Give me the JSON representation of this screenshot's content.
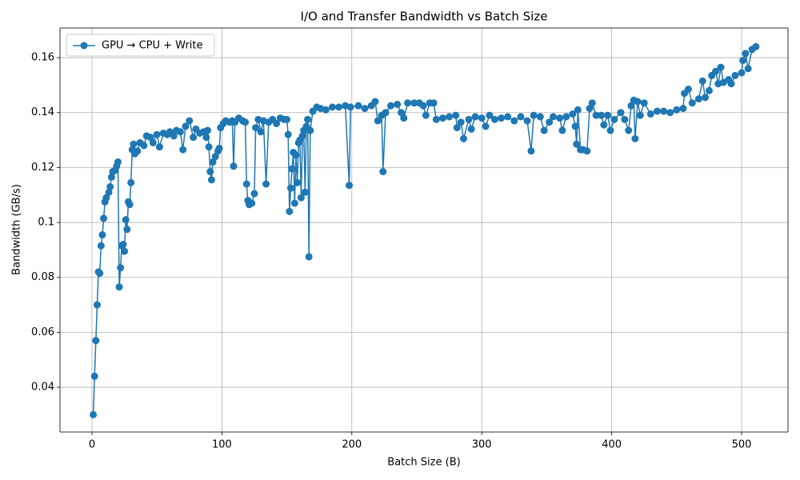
{
  "chart_data": {
    "type": "line",
    "title": "I/O and Transfer Bandwidth vs Batch Size",
    "xlabel": "Batch Size (B)",
    "ylabel": "Bandwidth (GB/s)",
    "x": [
      1,
      2,
      3,
      4,
      5,
      6,
      7,
      8,
      9,
      10,
      11,
      13,
      14,
      15,
      16,
      18,
      19,
      20,
      21,
      22,
      23,
      24,
      25,
      26,
      27,
      28,
      29,
      30,
      31,
      32,
      33,
      35,
      37,
      40,
      42,
      45,
      47,
      50,
      52,
      55,
      58,
      60,
      63,
      65,
      68,
      70,
      72,
      75,
      78,
      80,
      83,
      86,
      88,
      89,
      90,
      91,
      92,
      93,
      95,
      97,
      98,
      99,
      101,
      103,
      106,
      108,
      109,
      110,
      113,
      116,
      118,
      119,
      120,
      121,
      123,
      125,
      126,
      128,
      130,
      132,
      134,
      136,
      139,
      142,
      145,
      148,
      150,
      151,
      152,
      153,
      154,
      155,
      156,
      157,
      158,
      159,
      160,
      161,
      162,
      163,
      164,
      165,
      166,
      167,
      168,
      170,
      173,
      176,
      180,
      185,
      190,
      195,
      198,
      199,
      205,
      210,
      215,
      218,
      220,
      223,
      224,
      226,
      230,
      235,
      238,
      240,
      243,
      248,
      252,
      255,
      257,
      260,
      263,
      265,
      270,
      275,
      280,
      281,
      284,
      286,
      290,
      292,
      295,
      300,
      303,
      306,
      310,
      315,
      320,
      325,
      330,
      335,
      338,
      340,
      345,
      348,
      352,
      355,
      360,
      362,
      365,
      370,
      372,
      373,
      374,
      376,
      378,
      381,
      383,
      385,
      388,
      392,
      394,
      397,
      399,
      402,
      407,
      410,
      413,
      415,
      417,
      418,
      420,
      422,
      425,
      430,
      435,
      440,
      445,
      450,
      455,
      456,
      459,
      462,
      467,
      470,
      472,
      475,
      477,
      480,
      482,
      484,
      486,
      490,
      492,
      495,
      500,
      501,
      503,
      505,
      508,
      511
    ],
    "series": [
      {
        "name": "GPU → CPU + Write",
        "color": "#1f77b4",
        "values": [
          0.03,
          0.044,
          0.057,
          0.07,
          0.082,
          0.0815,
          0.0915,
          0.0955,
          0.1015,
          0.1075,
          0.109,
          0.111,
          0.113,
          0.1165,
          0.1185,
          0.119,
          0.1205,
          0.122,
          0.0765,
          0.0835,
          0.0915,
          0.092,
          0.0895,
          0.101,
          0.0975,
          0.1075,
          0.1065,
          0.1145,
          0.1265,
          0.1285,
          0.125,
          0.126,
          0.129,
          0.128,
          0.1315,
          0.131,
          0.129,
          0.132,
          0.1275,
          0.1325,
          0.132,
          0.133,
          0.1315,
          0.1335,
          0.133,
          0.1265,
          0.135,
          0.137,
          0.131,
          0.134,
          0.1325,
          0.133,
          0.131,
          0.1335,
          0.1275,
          0.1185,
          0.1155,
          0.122,
          0.124,
          0.126,
          0.127,
          0.1345,
          0.136,
          0.137,
          0.1365,
          0.137,
          0.1205,
          0.1365,
          0.138,
          0.137,
          0.1365,
          0.114,
          0.108,
          0.1065,
          0.107,
          0.1105,
          0.1345,
          0.1375,
          0.133,
          0.137,
          0.114,
          0.1365,
          0.1375,
          0.136,
          0.138,
          0.1375,
          0.1375,
          0.132,
          0.104,
          0.1125,
          0.1195,
          0.1255,
          0.107,
          0.1245,
          0.1145,
          0.129,
          0.13,
          0.109,
          0.1315,
          0.1335,
          0.111,
          0.135,
          0.1375,
          0.0875,
          0.1335,
          0.1405,
          0.142,
          0.1415,
          0.141,
          0.142,
          0.142,
          0.1425,
          0.1135,
          0.142,
          0.1425,
          0.1415,
          0.1425,
          0.144,
          0.137,
          0.139,
          0.1185,
          0.14,
          0.1425,
          0.143,
          0.14,
          0.138,
          0.1435,
          0.1435,
          0.1435,
          0.1425,
          0.139,
          0.1435,
          0.1435,
          0.1375,
          0.138,
          0.1385,
          0.139,
          0.1345,
          0.1365,
          0.1305,
          0.1375,
          0.134,
          0.1385,
          0.138,
          0.135,
          0.139,
          0.1375,
          0.138,
          0.1385,
          0.137,
          0.1385,
          0.137,
          0.126,
          0.139,
          0.1385,
          0.1335,
          0.1365,
          0.1385,
          0.138,
          0.1335,
          0.1385,
          0.1395,
          0.135,
          0.1285,
          0.141,
          0.1265,
          0.1265,
          0.126,
          0.1415,
          0.1435,
          0.139,
          0.139,
          0.1355,
          0.139,
          0.1335,
          0.1375,
          0.14,
          0.1375,
          0.1335,
          0.1425,
          0.1445,
          0.1305,
          0.144,
          0.139,
          0.1435,
          0.1395,
          0.1405,
          0.1405,
          0.14,
          0.141,
          0.1415,
          0.147,
          0.1485,
          0.1435,
          0.145,
          0.1515,
          0.1455,
          0.148,
          0.1535,
          0.155,
          0.1505,
          0.1565,
          0.151,
          0.152,
          0.1505,
          0.1535,
          0.1545,
          0.159,
          0.1615,
          0.156,
          0.163,
          0.164
        ]
      }
    ],
    "xlim": [
      -24.6,
      535.7
    ],
    "ylim": [
      0.0237,
      0.1708
    ],
    "xticks": [
      0,
      100,
      200,
      300,
      400,
      500
    ],
    "yticks": [
      0.04,
      0.06,
      0.08,
      0.1,
      0.12,
      0.14,
      0.16
    ],
    "grid": true,
    "legend": "upper left"
  }
}
